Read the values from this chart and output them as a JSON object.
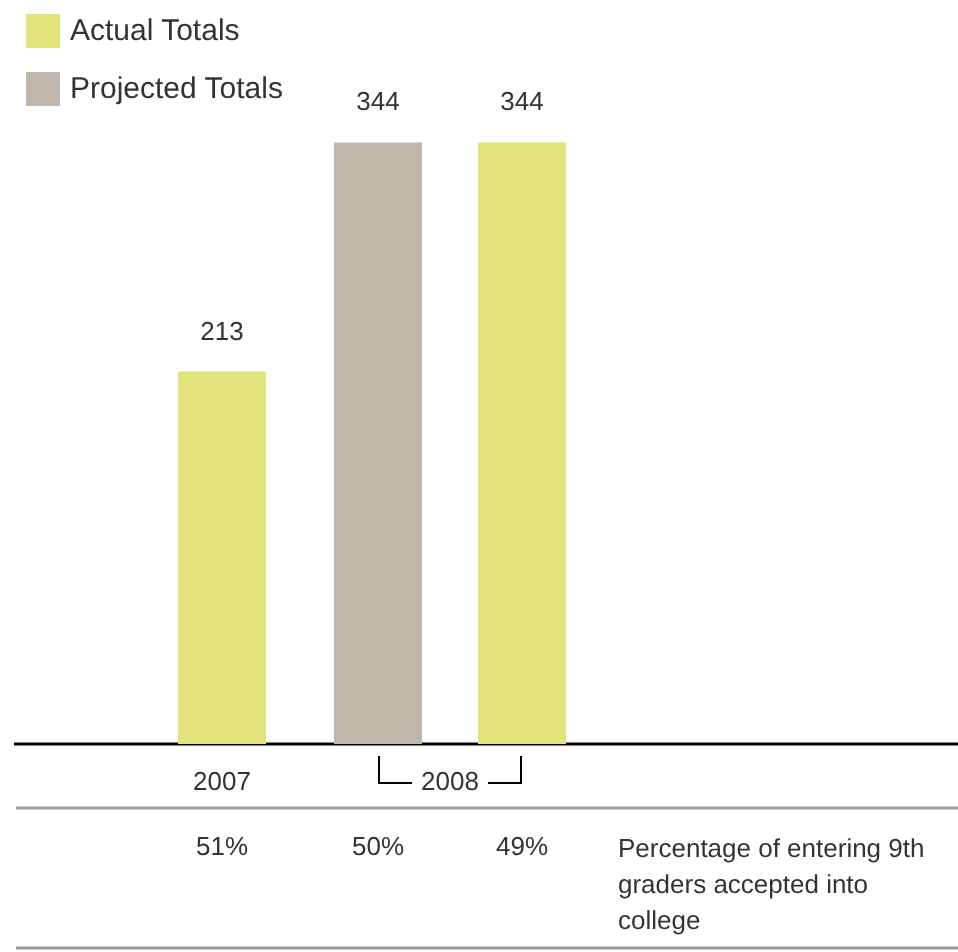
{
  "chart_data": {
    "type": "bar",
    "categories": [
      "2007",
      "2008"
    ],
    "series": [
      {
        "name": "Actual Totals",
        "color": "#e2e37a",
        "values": [
          213,
          344
        ]
      },
      {
        "name": "Projected Totals",
        "color": "#c0b6ac",
        "values": [
          null,
          344
        ]
      }
    ],
    "data_labels": true,
    "legend": "top left",
    "grid": false,
    "annotations": [
      "51%",
      "50%",
      "49%",
      "Percentage of entering 9th graders accepted into college"
    ]
  }
}
